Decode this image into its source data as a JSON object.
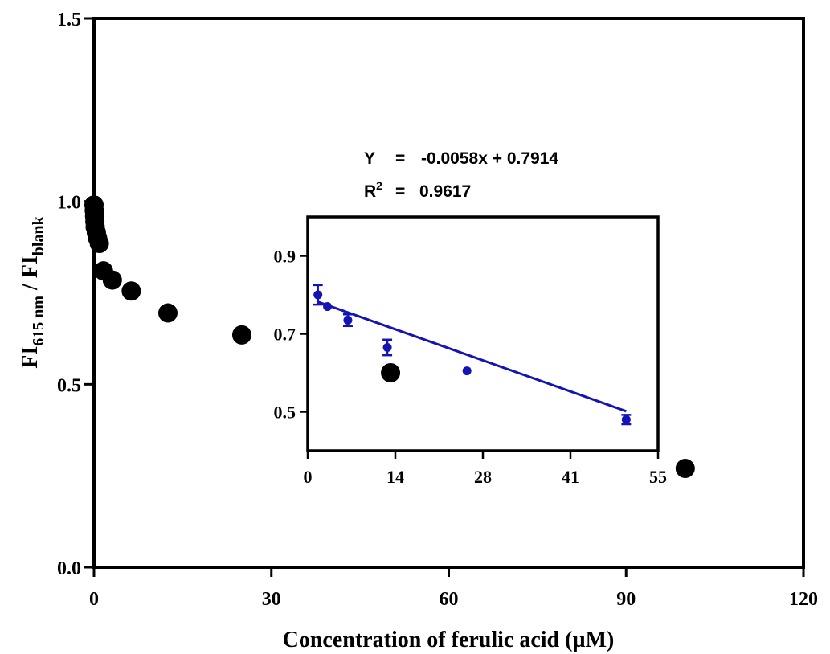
{
  "chart_data": [
    {
      "type": "scatter",
      "xlabel": "Concentration of ferulic acid (µM)",
      "ylabel": {
        "main": "FI",
        "sub1": "615 nm",
        "sep": " / FI",
        "sub2": "blank"
      },
      "xlim": [
        0,
        120
      ],
      "ylim": [
        0,
        1.5
      ],
      "xticks": [
        "0",
        "30",
        "60",
        "90",
        "120"
      ],
      "yticks": [
        "0.0",
        "0.5",
        "1.0",
        "1.5"
      ],
      "series": [
        {
          "color": "#000000",
          "points": [
            [
              0.0,
              0.99
            ],
            [
              0.05,
              0.975
            ],
            [
              0.1,
              0.96
            ],
            [
              0.15,
              0.945
            ],
            [
              0.2,
              0.93
            ],
            [
              0.4,
              0.915
            ],
            [
              0.6,
              0.9
            ],
            [
              0.9,
              0.885
            ],
            [
              1.6,
              0.81
            ],
            [
              3.1,
              0.785
            ],
            [
              6.3,
              0.755
            ],
            [
              12.5,
              0.695
            ],
            [
              25,
              0.635
            ],
            [
              100,
              0.27
            ]
          ]
        }
      ]
    },
    {
      "type": "scatter",
      "xlim": [
        0,
        55
      ],
      "ylim": [
        0.4,
        1.0
      ],
      "xticks": [
        "0",
        "14",
        "28",
        "41",
        "55"
      ],
      "yticks": [
        "0.5",
        "0.7",
        "0.9"
      ],
      "ytick_values": [
        0.5,
        0.7,
        0.9
      ],
      "series": [
        {
          "color": "#1414b4",
          "points": [
            {
              "x": 1.6,
              "y": 0.8,
              "err": 0.025
            },
            {
              "x": 3.1,
              "y": 0.77,
              "err": 0.0
            },
            {
              "x": 6.3,
              "y": 0.735,
              "err": 0.015
            },
            {
              "x": 12.5,
              "y": 0.665,
              "err": 0.02
            },
            {
              "x": 25,
              "y": 0.605,
              "err": 0.0
            },
            {
              "x": 50,
              "y": 0.48,
              "err": 0.012
            }
          ]
        },
        {
          "color": "#000000",
          "points": [
            {
              "x": 13.0,
              "y": 0.6
            }
          ]
        }
      ],
      "fit": {
        "color": "#1414b4",
        "slope": -0.0058,
        "intercept": 0.7914,
        "x_range": [
          1.6,
          50
        ]
      },
      "annotation": {
        "equation_lhs": "Y",
        "equation_eq": "=",
        "equation_rhs": "-0.0058x + 0.7914",
        "r2_label": "R",
        "r2_sup": "2",
        "r2_eq": "=",
        "r2_value": "0.9617"
      }
    }
  ]
}
